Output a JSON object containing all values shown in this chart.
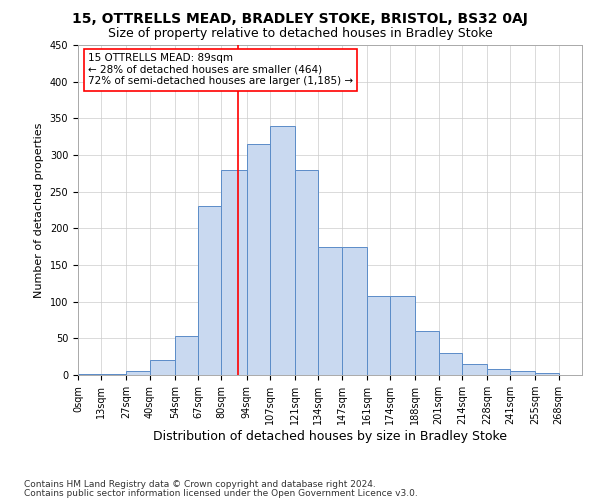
{
  "title": "15, OTTRELLS MEAD, BRADLEY STOKE, BRISTOL, BS32 0AJ",
  "subtitle": "Size of property relative to detached houses in Bradley Stoke",
  "xlabel": "Distribution of detached houses by size in Bradley Stoke",
  "ylabel": "Number of detached properties",
  "footer1": "Contains HM Land Registry data © Crown copyright and database right 2024.",
  "footer2": "Contains public sector information licensed under the Open Government Licence v3.0.",
  "bin_labels": [
    "0sqm",
    "13sqm",
    "27sqm",
    "40sqm",
    "54sqm",
    "67sqm",
    "80sqm",
    "94sqm",
    "107sqm",
    "121sqm",
    "134sqm",
    "147sqm",
    "161sqm",
    "174sqm",
    "188sqm",
    "201sqm",
    "214sqm",
    "228sqm",
    "241sqm",
    "255sqm",
    "268sqm"
  ],
  "bar_heights": [
    2,
    2,
    5,
    20,
    53,
    230,
    280,
    315,
    340,
    280,
    175,
    175,
    108,
    108,
    60,
    30,
    15,
    8,
    5,
    3,
    0
  ],
  "bin_edges": [
    0,
    13,
    27,
    40,
    54,
    67,
    80,
    94,
    107,
    121,
    134,
    147,
    161,
    174,
    188,
    201,
    214,
    228,
    241,
    255,
    268,
    281
  ],
  "bar_color": "#c9d9f0",
  "bar_edge_color": "#5b8cc8",
  "red_line_x": 89,
  "annotation_line1": "15 OTTRELLS MEAD: 89sqm",
  "annotation_line2": "← 28% of detached houses are smaller (464)",
  "annotation_line3": "72% of semi-detached houses are larger (1,185) →",
  "ylim": [
    0,
    450
  ],
  "yticks": [
    0,
    50,
    100,
    150,
    200,
    250,
    300,
    350,
    400,
    450
  ],
  "grid_color": "#cccccc",
  "title_fontsize": 10,
  "subtitle_fontsize": 9,
  "xlabel_fontsize": 9,
  "ylabel_fontsize": 8,
  "tick_fontsize": 7,
  "annotation_fontsize": 7.5,
  "footer_fontsize": 6.5
}
